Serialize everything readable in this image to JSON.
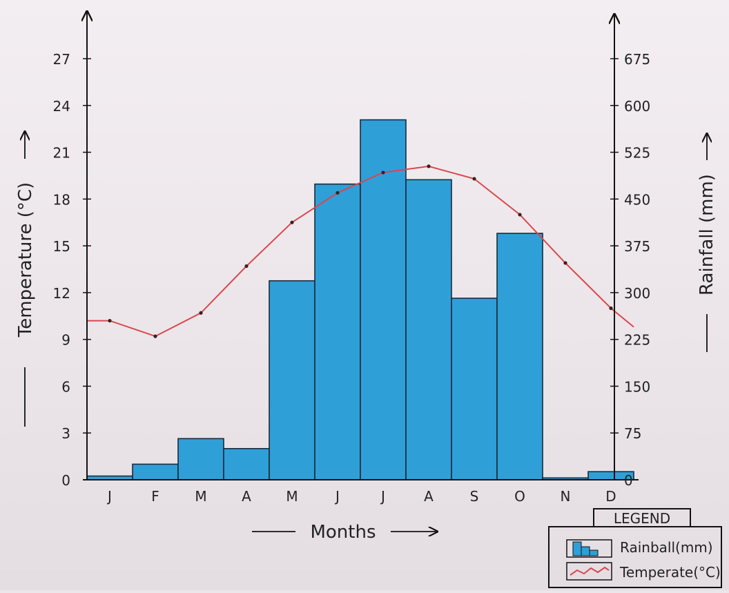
{
  "chart_data": {
    "type": "bar",
    "categories": [
      "J",
      "F",
      "M",
      "A",
      "M",
      "J",
      "J",
      "A",
      "S",
      "O",
      "N",
      "D"
    ],
    "series": [
      {
        "name": "Rainball(mm)",
        "type": "bar",
        "axis": "right",
        "color": "#2f9fd8",
        "values": [
          6,
          25,
          66,
          50,
          319,
          474,
          577,
          481,
          291,
          395,
          3,
          13
        ]
      },
      {
        "name": "Temperature(°C)",
        "type": "line",
        "axis": "left",
        "color": "#d8484d",
        "values": [
          10.2,
          9.2,
          10.7,
          13.7,
          16.5,
          18.4,
          19.7,
          20.1,
          19.3,
          17.0,
          13.9,
          11.0
        ]
      }
    ],
    "xlabel": "Months",
    "ylabel_left": "Temperature (°C)",
    "ylabel_right": "Rainfall (mm)",
    "ylim_left": [
      0,
      27
    ],
    "ylim_right": [
      0,
      675
    ],
    "yticks_left": [
      "0",
      "3",
      "6",
      "9",
      "12",
      "15",
      "18",
      "21",
      "24",
      "27"
    ],
    "yticks_right": [
      "0",
      "75",
      "150",
      "225",
      "300",
      "375",
      "450",
      "525",
      "600",
      "675"
    ],
    "legend": {
      "title": "LEGEND",
      "position": "bottom-right",
      "items": [
        {
          "label": "Rainball(mm)",
          "kind": "bar"
        },
        {
          "label": "Temperate(°C)",
          "kind": "line"
        }
      ]
    },
    "grid": false
  }
}
